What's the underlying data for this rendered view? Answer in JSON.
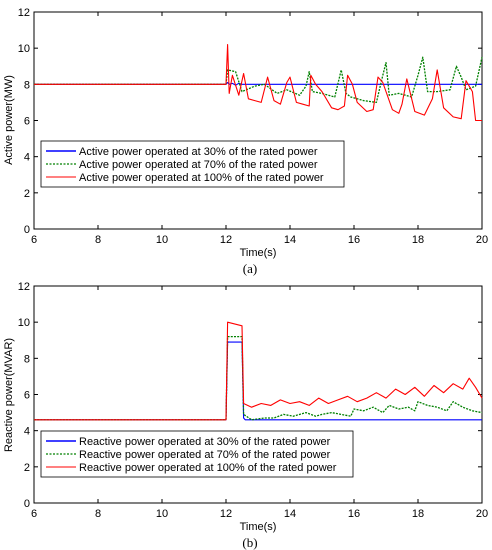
{
  "chart_data": [
    {
      "type": "line",
      "caption": "(a)",
      "xlabel": "Time(s)",
      "ylabel": "Active power(MW)",
      "xlim": [
        6,
        20
      ],
      "ylim": [
        0,
        12
      ],
      "xticks": [
        6,
        8,
        10,
        12,
        14,
        16,
        18,
        20
      ],
      "yticks": [
        0,
        2,
        4,
        6,
        8,
        10,
        12
      ],
      "legend_position": "center-left",
      "series": [
        {
          "name": "Active power operated at 30% of the rated power",
          "color": "#0000ff",
          "style": "solid",
          "x": [
            6,
            12,
            12.05,
            12.1,
            12.2,
            12.3,
            12.4,
            12.5,
            20
          ],
          "y": [
            8,
            8,
            8.1,
            8,
            8.05,
            7.95,
            8.05,
            8,
            8
          ]
        },
        {
          "name": "Active power operated at 70% of the rated power",
          "color": "#008000",
          "style": "dotted",
          "x": [
            6,
            12,
            12.05,
            12.3,
            12.5,
            12.9,
            13.2,
            13.6,
            13.9,
            14.3,
            14.5,
            14.6,
            14.7,
            15.0,
            15.4,
            15.6,
            15.75,
            15.9,
            16.3,
            16.7,
            16.9,
            17.0,
            17.1,
            17.4,
            17.8,
            18.0,
            18.15,
            18.3,
            18.6,
            19.0,
            19.2,
            19.35,
            19.5,
            19.8,
            20.0
          ],
          "y": [
            8,
            8,
            8.8,
            8.7,
            7.6,
            7.9,
            8.0,
            7.5,
            7.7,
            7.4,
            7.9,
            8.7,
            7.6,
            7.5,
            7.3,
            8.8,
            7.5,
            7.3,
            7.1,
            7.0,
            8.5,
            9.2,
            7.4,
            7.5,
            7.3,
            8.5,
            9.5,
            7.6,
            7.6,
            7.7,
            9.0,
            8.4,
            7.7,
            7.9,
            9.5
          ]
        },
        {
          "name": "Active power operated at 100% of the rated power",
          "color": "#ff0000",
          "style": "solid",
          "x": [
            6,
            12,
            12.05,
            12.1,
            12.2,
            12.4,
            12.55,
            12.7,
            12.9,
            13.1,
            13.3,
            13.5,
            13.7,
            13.9,
            14.0,
            14.2,
            14.4,
            14.6,
            14.65,
            14.8,
            15.0,
            15.3,
            15.5,
            15.7,
            15.8,
            15.95,
            16.1,
            16.4,
            16.6,
            16.75,
            16.9,
            17.2,
            17.4,
            17.5,
            17.65,
            17.9,
            18.2,
            18.45,
            18.6,
            18.8,
            19.1,
            19.35,
            19.5,
            19.7,
            19.8,
            20.0
          ],
          "y": [
            8,
            8,
            10.2,
            7.5,
            8.5,
            7.4,
            8.6,
            7.2,
            7.1,
            7.0,
            8.4,
            7.1,
            6.9,
            8.1,
            8.4,
            7.0,
            6.9,
            6.8,
            8.5,
            8.0,
            7.6,
            6.7,
            6.6,
            6.8,
            8.5,
            8.0,
            7.0,
            6.5,
            6.6,
            8.4,
            8.1,
            6.6,
            6.4,
            6.9,
            8.3,
            6.5,
            6.3,
            7.2,
            8.8,
            6.7,
            6.2,
            6.1,
            8.2,
            7.6,
            6.0,
            6.0
          ]
        }
      ]
    },
    {
      "type": "line",
      "caption": "(b)",
      "xlabel": "Time(s)",
      "ylabel": "Reactive power(MVAR)",
      "xlim": [
        6,
        20
      ],
      "ylim": [
        0,
        12
      ],
      "xticks": [
        6,
        8,
        10,
        12,
        14,
        16,
        18,
        20
      ],
      "yticks": [
        0,
        2,
        4,
        6,
        8,
        10,
        12
      ],
      "legend_position": "lower-left",
      "series": [
        {
          "name": "Reactive power operated at 30% of the rated power",
          "color": "#0000ff",
          "style": "solid",
          "x": [
            6,
            12,
            12.05,
            12.5,
            12.55,
            12.6,
            20
          ],
          "y": [
            4.6,
            4.6,
            8.9,
            8.9,
            4.7,
            4.6,
            4.6
          ]
        },
        {
          "name": "Reactive power operated at 70% of the rated power",
          "color": "#008000",
          "style": "dotted",
          "x": [
            6,
            12,
            12.05,
            12.5,
            12.55,
            12.8,
            13.2,
            13.5,
            13.8,
            14.1,
            14.5,
            14.8,
            15.0,
            15.3,
            15.6,
            15.9,
            16.0,
            16.3,
            16.6,
            16.9,
            17.1,
            17.4,
            17.7,
            17.9,
            18.0,
            18.3,
            18.6,
            18.9,
            19.1,
            19.4,
            19.7,
            20.0
          ],
          "y": [
            4.6,
            4.6,
            9.2,
            9.2,
            4.9,
            4.6,
            4.7,
            4.7,
            4.9,
            4.8,
            5.0,
            4.8,
            4.9,
            5.0,
            4.9,
            4.8,
            5.2,
            5.1,
            5.3,
            5.0,
            5.4,
            5.2,
            5.3,
            5.1,
            5.6,
            5.4,
            5.3,
            5.1,
            5.6,
            5.3,
            5.1,
            5.0
          ]
        },
        {
          "name": "Reactive power operated at 100% of the rated power",
          "color": "#ff0000",
          "style": "solid",
          "x": [
            6,
            12,
            12.05,
            12.5,
            12.55,
            12.8,
            13.1,
            13.4,
            13.7,
            14.0,
            14.3,
            14.6,
            14.9,
            15.2,
            15.5,
            15.8,
            16.1,
            16.4,
            16.7,
            17.0,
            17.3,
            17.6,
            17.9,
            18.2,
            18.5,
            18.8,
            19.1,
            19.4,
            19.6,
            19.8,
            20.0
          ],
          "y": [
            4.6,
            4.6,
            10.0,
            9.8,
            5.5,
            5.3,
            5.5,
            5.4,
            5.7,
            5.5,
            5.6,
            5.4,
            5.8,
            5.5,
            5.7,
            5.9,
            5.6,
            5.8,
            6.1,
            5.8,
            6.3,
            6.0,
            6.4,
            5.9,
            6.5,
            6.1,
            6.6,
            6.3,
            6.9,
            6.4,
            5.8
          ]
        }
      ]
    }
  ]
}
